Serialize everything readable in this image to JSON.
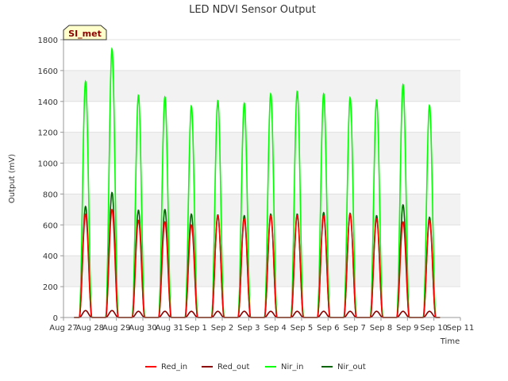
{
  "chart_data": {
    "type": "line",
    "title": "LED NDVI Sensor Output",
    "xlabel": "Time",
    "ylabel": "Output (mV)",
    "ylim": [
      0,
      1800
    ],
    "yticks": [
      0,
      200,
      400,
      600,
      800,
      1000,
      1200,
      1400,
      1600,
      1800
    ],
    "xticks": [
      "Aug 27",
      "Aug 28",
      "Aug 29",
      "Aug 30",
      "Aug 31",
      "Sep 1",
      "Sep 2",
      "Sep 3",
      "Sep 4",
      "Sep 5",
      "Sep 6",
      "Sep 7",
      "Sep 8",
      "Sep 9",
      "Sep 10",
      "Sep 11"
    ],
    "xlim": [
      "Aug 27",
      "Sep 11"
    ],
    "site_label": "SI_met",
    "grid": "horizontal bands",
    "legend_position": "bottom",
    "day_centers": [
      "Aug 27 20:00",
      "Aug 28 20:00",
      "Aug 29 20:00",
      "Aug 30 20:00",
      "Aug 31 20:00",
      "Sep 1 20:00",
      "Sep 2 20:00",
      "Sep 3 20:00",
      "Sep 4 20:00",
      "Sep 5 20:00",
      "Sep 6 20:00",
      "Sep 7 20:00",
      "Sep 8 20:00",
      "Sep 9 20:00"
    ],
    "series": [
      {
        "name": "Red_in",
        "color": "#ff0000",
        "daily_peaks": [
          670,
          700,
          630,
          620,
          600,
          660,
          640,
          660,
          660,
          660,
          670,
          640,
          620,
          630
        ]
      },
      {
        "name": "Red_out",
        "color": "#8b0000",
        "daily_peaks": [
          45,
          45,
          40,
          40,
          40,
          40,
          40,
          40,
          40,
          40,
          40,
          40,
          40,
          40
        ]
      },
      {
        "name": "Nir_in",
        "color": "#00ff00",
        "daily_peaks": [
          1530,
          1740,
          1440,
          1430,
          1370,
          1405,
          1390,
          1450,
          1465,
          1450,
          1425,
          1410,
          1510,
          1375
        ]
      },
      {
        "name": "Nir_out",
        "color": "#006400",
        "daily_peaks": [
          720,
          810,
          695,
          700,
          670,
          665,
          660,
          670,
          670,
          680,
          675,
          660,
          730,
          650
        ]
      }
    ]
  }
}
